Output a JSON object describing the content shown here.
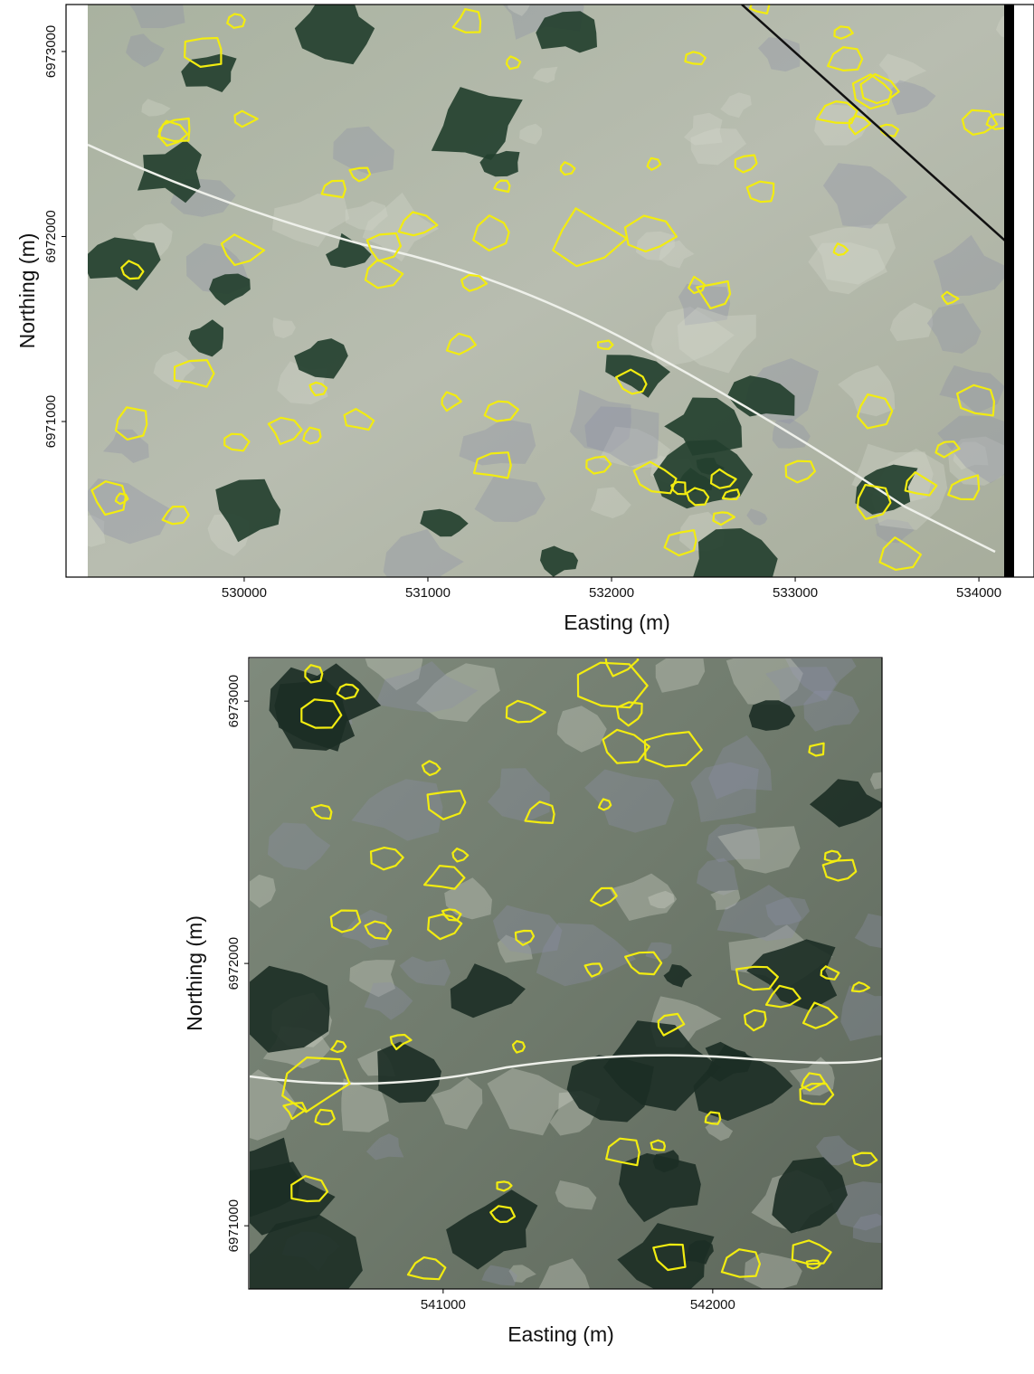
{
  "maps": [
    {
      "xlabel": "Easting (m)",
      "ylabel": "Northing (m)",
      "xlim": [
        529030,
        534300
      ],
      "ylim": [
        6970159,
        6973254
      ],
      "xticks": [
        530000,
        531000,
        532000,
        533000,
        534000
      ],
      "yticks": [
        6971000,
        6972000,
        6973000
      ]
    },
    {
      "xlabel": "Easting (m)",
      "ylabel": "Northing (m)",
      "xlim": [
        540279,
        542628
      ],
      "ylim": [
        6970759,
        6973166
      ],
      "xticks": [
        541000,
        542000
      ],
      "yticks": [
        6971000,
        6972000,
        6973000
      ]
    }
  ]
}
